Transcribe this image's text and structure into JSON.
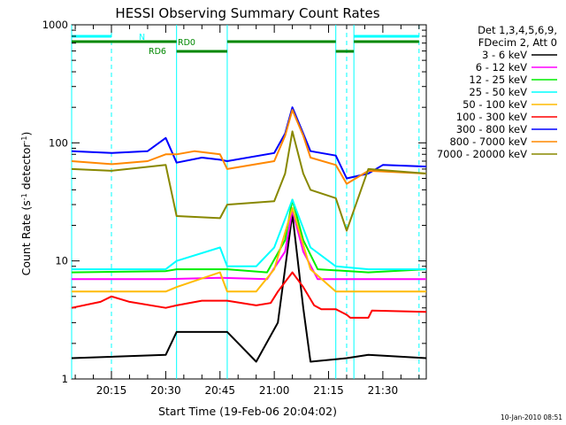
{
  "chart_data": {
    "type": "line",
    "title": "HESSI Observing Summary Count Rates",
    "xlabel": "Start Time (19-Feb-06 20:04:02)",
    "ylabel_main": "Count Rate (s",
    "ylabel_sup1": "-1",
    "ylabel_mid": " detector",
    "ylabel_sup2": "-1",
    "ylabel_end": ")",
    "yscale": "log",
    "ylim": [
      1,
      1000
    ],
    "xlim": [
      "20:04",
      "21:42"
    ],
    "x_ticks": [
      "20:15",
      "20:30",
      "20:45",
      "21:00",
      "21:15",
      "21:30"
    ],
    "y_ticks": [
      "1",
      "10",
      "100",
      "1000"
    ],
    "legend_header": [
      "Det 1,3,4,5,6,9,",
      "FDecim 2, Att 0"
    ],
    "legend_position": "right",
    "series": [
      {
        "name": "3 - 6 keV",
        "color": "#000000",
        "x": [
          "20:04",
          "20:30",
          "20:33",
          "20:47",
          "20:55",
          "21:01",
          "21:05",
          "21:08",
          "21:10",
          "21:20",
          "21:26",
          "21:42"
        ],
        "y": [
          1.5,
          1.6,
          2.5,
          2.5,
          1.4,
          3,
          25,
          4,
          1.4,
          1.5,
          1.6,
          1.5
        ]
      },
      {
        "name": "6 - 12 keV",
        "color": "#ff00ff",
        "x": [
          "20:04",
          "20:30",
          "20:45",
          "20:58",
          "21:03",
          "21:05",
          "21:08",
          "21:12",
          "21:26",
          "21:42"
        ],
        "y": [
          7,
          7,
          7.2,
          7,
          12,
          27,
          12,
          7,
          7,
          7
        ]
      },
      {
        "name": "12 - 25 keV",
        "color": "#00ee00",
        "x": [
          "20:04",
          "20:30",
          "20:33",
          "20:47",
          "20:58",
          "21:03",
          "21:05",
          "21:08",
          "21:12",
          "21:26",
          "21:42"
        ],
        "y": [
          8,
          8.2,
          8.5,
          8.5,
          8,
          15,
          33,
          15,
          8.5,
          8,
          8.5
        ]
      },
      {
        "name": "25 - 50 keV",
        "color": "#00ffff",
        "x": [
          "20:04",
          "20:15",
          "20:30",
          "20:33",
          "20:45",
          "20:47",
          "20:55",
          "21:00",
          "21:05",
          "21:10",
          "21:17",
          "21:26",
          "21:42"
        ],
        "y": [
          8.5,
          8.5,
          8.5,
          10,
          13,
          9,
          9,
          13,
          33,
          13,
          9,
          8.5,
          8.5
        ]
      },
      {
        "name": "50 - 100 keV",
        "color": "#ffbb00",
        "x": [
          "20:04",
          "20:25",
          "20:30",
          "20:33",
          "20:45",
          "20:47",
          "20:55",
          "21:00",
          "21:05",
          "21:10",
          "21:17",
          "21:26",
          "21:42"
        ],
        "y": [
          5.5,
          5.5,
          5.5,
          6,
          8,
          5.5,
          5.5,
          8.5,
          28,
          8.5,
          5.5,
          5.5,
          5.5
        ]
      },
      {
        "name": "100 - 300 keV",
        "color": "#ff0000",
        "x": [
          "20:04",
          "20:12",
          "20:15",
          "20:20",
          "20:30",
          "20:33",
          "20:40",
          "20:45",
          "20:47",
          "20:55",
          "20:59",
          "21:01",
          "21:05",
          "21:08",
          "21:11",
          "21:13",
          "21:17",
          "21:20",
          "21:21",
          "21:26",
          "21:27",
          "21:42"
        ],
        "y": [
          4,
          4.5,
          5,
          4.5,
          4,
          4.2,
          4.6,
          4.6,
          4.6,
          4.2,
          4.4,
          5.5,
          8,
          6,
          4.2,
          3.9,
          3.9,
          3.5,
          3.3,
          3.3,
          3.8,
          3.7
        ]
      },
      {
        "name": "300 - 800 keV",
        "color": "#0000ff",
        "x": [
          "20:04",
          "20:15",
          "20:25",
          "20:30",
          "20:33",
          "20:40",
          "20:45",
          "20:47",
          "21:00",
          "21:03",
          "21:05",
          "21:08",
          "21:10",
          "21:17",
          "21:20",
          "21:26",
          "21:30",
          "21:42"
        ],
        "y": [
          85,
          82,
          85,
          110,
          68,
          75,
          72,
          70,
          82,
          120,
          200,
          120,
          85,
          78,
          50,
          55,
          65,
          63
        ]
      },
      {
        "name": "800 - 7000 keV",
        "color": "#ff8800",
        "x": [
          "20:04",
          "20:15",
          "20:25",
          "20:30",
          "20:33",
          "20:38",
          "20:45",
          "20:47",
          "21:00",
          "21:03",
          "21:05",
          "21:08",
          "21:10",
          "21:17",
          "21:20",
          "21:26",
          "21:42"
        ],
        "y": [
          70,
          66,
          70,
          80,
          80,
          85,
          80,
          60,
          70,
          115,
          190,
          115,
          75,
          65,
          45,
          58,
          55
        ]
      },
      {
        "name": "7000 - 20000 keV",
        "color": "#888800",
        "x": [
          "20:04",
          "20:15",
          "20:30",
          "20:33",
          "20:45",
          "20:47",
          "21:00",
          "21:03",
          "21:05",
          "21:08",
          "21:10",
          "21:17",
          "21:20",
          "21:26",
          "21:42"
        ],
        "y": [
          60,
          58,
          65,
          24,
          23,
          30,
          32,
          55,
          125,
          55,
          40,
          34,
          18,
          60,
          55
        ]
      }
    ],
    "bars": {
      "N": {
        "label": "N",
        "color": "#00ffff"
      },
      "RD0": {
        "label": "RD0",
        "color": "#008800"
      },
      "RD6": {
        "label": "RD6",
        "color": "#008800"
      }
    },
    "timestamp": "10-Jan-2010 08:51"
  }
}
